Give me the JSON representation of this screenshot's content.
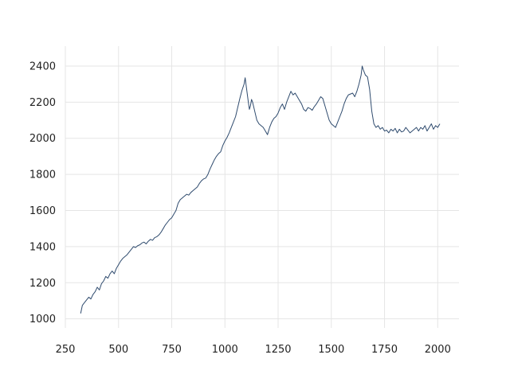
{
  "colors": {
    "series": "#2f4b6e",
    "grid": "#e5e5e5",
    "text": "#222222"
  },
  "chart_data": {
    "type": "line",
    "title": "",
    "xlabel": "",
    "ylabel": "",
    "xlim": [
      250,
      2100
    ],
    "ylim": [
      950,
      2510
    ],
    "xticks": [
      250,
      500,
      750,
      1000,
      1250,
      1500,
      1750,
      2000
    ],
    "yticks": [
      1000,
      1200,
      1400,
      1600,
      1800,
      2000,
      2200,
      2400
    ],
    "grid": true,
    "legend": "none",
    "series": [
      {
        "values": [
          [
            322,
            1030
          ],
          [
            330,
            1075
          ],
          [
            340,
            1090
          ],
          [
            350,
            1105
          ],
          [
            360,
            1120
          ],
          [
            370,
            1110
          ],
          [
            380,
            1135
          ],
          [
            390,
            1150
          ],
          [
            400,
            1175
          ],
          [
            410,
            1160
          ],
          [
            420,
            1195
          ],
          [
            430,
            1210
          ],
          [
            440,
            1235
          ],
          [
            450,
            1225
          ],
          [
            460,
            1250
          ],
          [
            470,
            1265
          ],
          [
            480,
            1250
          ],
          [
            490,
            1280
          ],
          [
            500,
            1300
          ],
          [
            510,
            1320
          ],
          [
            520,
            1335
          ],
          [
            530,
            1345
          ],
          [
            540,
            1355
          ],
          [
            550,
            1370
          ],
          [
            560,
            1385
          ],
          [
            570,
            1400
          ],
          [
            580,
            1395
          ],
          [
            590,
            1405
          ],
          [
            600,
            1410
          ],
          [
            610,
            1420
          ],
          [
            620,
            1425
          ],
          [
            630,
            1415
          ],
          [
            640,
            1430
          ],
          [
            650,
            1440
          ],
          [
            660,
            1435
          ],
          [
            670,
            1450
          ],
          [
            680,
            1455
          ],
          [
            690,
            1465
          ],
          [
            700,
            1480
          ],
          [
            710,
            1500
          ],
          [
            720,
            1520
          ],
          [
            730,
            1535
          ],
          [
            740,
            1550
          ],
          [
            750,
            1560
          ],
          [
            760,
            1580
          ],
          [
            770,
            1600
          ],
          [
            780,
            1640
          ],
          [
            790,
            1660
          ],
          [
            800,
            1670
          ],
          [
            810,
            1680
          ],
          [
            820,
            1690
          ],
          [
            830,
            1685
          ],
          [
            840,
            1700
          ],
          [
            850,
            1710
          ],
          [
            860,
            1720
          ],
          [
            870,
            1730
          ],
          [
            880,
            1750
          ],
          [
            890,
            1765
          ],
          [
            900,
            1775
          ],
          [
            910,
            1780
          ],
          [
            920,
            1800
          ],
          [
            930,
            1830
          ],
          [
            940,
            1855
          ],
          [
            950,
            1880
          ],
          [
            960,
            1900
          ],
          [
            970,
            1915
          ],
          [
            980,
            1925
          ],
          [
            990,
            1960
          ],
          [
            1000,
            1985
          ],
          [
            1010,
            2005
          ],
          [
            1020,
            2030
          ],
          [
            1030,
            2060
          ],
          [
            1040,
            2090
          ],
          [
            1050,
            2120
          ],
          [
            1060,
            2170
          ],
          [
            1070,
            2220
          ],
          [
            1080,
            2265
          ],
          [
            1090,
            2300
          ],
          [
            1095,
            2335
          ],
          [
            1100,
            2290
          ],
          [
            1110,
            2200
          ],
          [
            1115,
            2160
          ],
          [
            1120,
            2180
          ],
          [
            1125,
            2215
          ],
          [
            1130,
            2200
          ],
          [
            1140,
            2150
          ],
          [
            1150,
            2100
          ],
          [
            1160,
            2080
          ],
          [
            1170,
            2070
          ],
          [
            1180,
            2060
          ],
          [
            1190,
            2040
          ],
          [
            1200,
            2020
          ],
          [
            1210,
            2060
          ],
          [
            1220,
            2090
          ],
          [
            1230,
            2110
          ],
          [
            1240,
            2120
          ],
          [
            1250,
            2140
          ],
          [
            1260,
            2170
          ],
          [
            1270,
            2190
          ],
          [
            1280,
            2160
          ],
          [
            1290,
            2200
          ],
          [
            1300,
            2230
          ],
          [
            1310,
            2260
          ],
          [
            1320,
            2240
          ],
          [
            1330,
            2250
          ],
          [
            1340,
            2230
          ],
          [
            1350,
            2210
          ],
          [
            1360,
            2190
          ],
          [
            1370,
            2160
          ],
          [
            1380,
            2150
          ],
          [
            1390,
            2170
          ],
          [
            1400,
            2165
          ],
          [
            1410,
            2155
          ],
          [
            1420,
            2175
          ],
          [
            1430,
            2190
          ],
          [
            1440,
            2210
          ],
          [
            1450,
            2230
          ],
          [
            1460,
            2220
          ],
          [
            1470,
            2180
          ],
          [
            1480,
            2140
          ],
          [
            1490,
            2100
          ],
          [
            1500,
            2080
          ],
          [
            1510,
            2070
          ],
          [
            1520,
            2060
          ],
          [
            1530,
            2090
          ],
          [
            1540,
            2120
          ],
          [
            1550,
            2150
          ],
          [
            1560,
            2190
          ],
          [
            1570,
            2220
          ],
          [
            1580,
            2240
          ],
          [
            1590,
            2245
          ],
          [
            1600,
            2250
          ],
          [
            1610,
            2230
          ],
          [
            1620,
            2260
          ],
          [
            1630,
            2300
          ],
          [
            1640,
            2350
          ],
          [
            1645,
            2400
          ],
          [
            1650,
            2380
          ],
          [
            1660,
            2350
          ],
          [
            1670,
            2340
          ],
          [
            1680,
            2270
          ],
          [
            1690,
            2150
          ],
          [
            1700,
            2080
          ],
          [
            1710,
            2060
          ],
          [
            1720,
            2070
          ],
          [
            1730,
            2050
          ],
          [
            1740,
            2060
          ],
          [
            1750,
            2040
          ],
          [
            1760,
            2045
          ],
          [
            1770,
            2030
          ],
          [
            1780,
            2050
          ],
          [
            1790,
            2040
          ],
          [
            1800,
            2055
          ],
          [
            1810,
            2030
          ],
          [
            1820,
            2050
          ],
          [
            1830,
            2035
          ],
          [
            1840,
            2040
          ],
          [
            1850,
            2060
          ],
          [
            1860,
            2045
          ],
          [
            1870,
            2030
          ],
          [
            1880,
            2040
          ],
          [
            1890,
            2050
          ],
          [
            1900,
            2060
          ],
          [
            1910,
            2040
          ],
          [
            1920,
            2060
          ],
          [
            1930,
            2050
          ],
          [
            1940,
            2070
          ],
          [
            1950,
            2040
          ],
          [
            1960,
            2060
          ],
          [
            1970,
            2080
          ],
          [
            1980,
            2050
          ],
          [
            1990,
            2070
          ],
          [
            2000,
            2060
          ],
          [
            2010,
            2080
          ]
        ]
      }
    ]
  }
}
